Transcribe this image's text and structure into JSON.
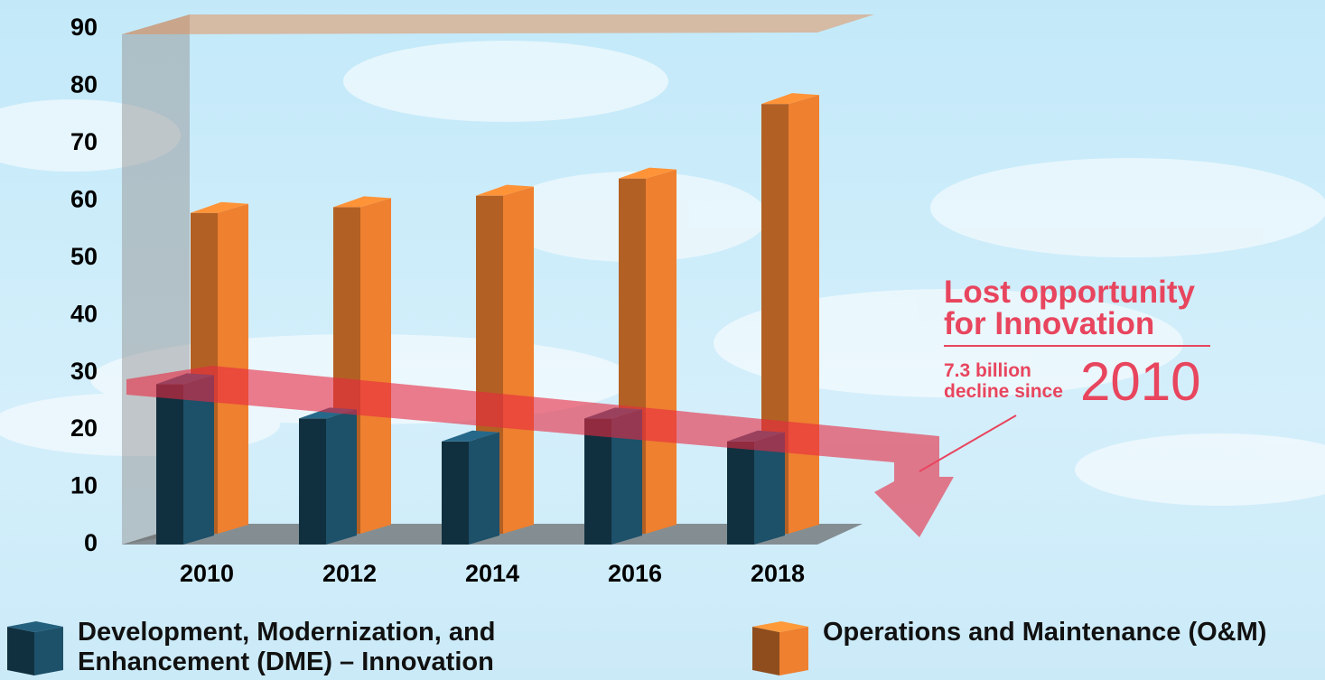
{
  "chart_data": {
    "type": "bar3d",
    "categories": [
      "2010",
      "2012",
      "2014",
      "2016",
      "2018"
    ],
    "series": [
      {
        "name": "Development, Modernization, and Enhancement (DME) – Innovation",
        "color": "#1d5069",
        "values": [
          28,
          22,
          18,
          22,
          18
        ]
      },
      {
        "name": "Operations and Maintenance (O&M)",
        "color": "#ee8030",
        "values": [
          56,
          57,
          59,
          62,
          75
        ]
      }
    ],
    "ylim": [
      0,
      90
    ],
    "yticks": [
      0,
      10,
      20,
      30,
      40,
      50,
      60,
      70,
      80,
      90
    ],
    "annotation": {
      "title_lines": [
        "Lost opportunity",
        "for Innovation"
      ],
      "detail_lines": [
        "7.3 billion",
        "decline since"
      ],
      "year": "2010"
    }
  }
}
